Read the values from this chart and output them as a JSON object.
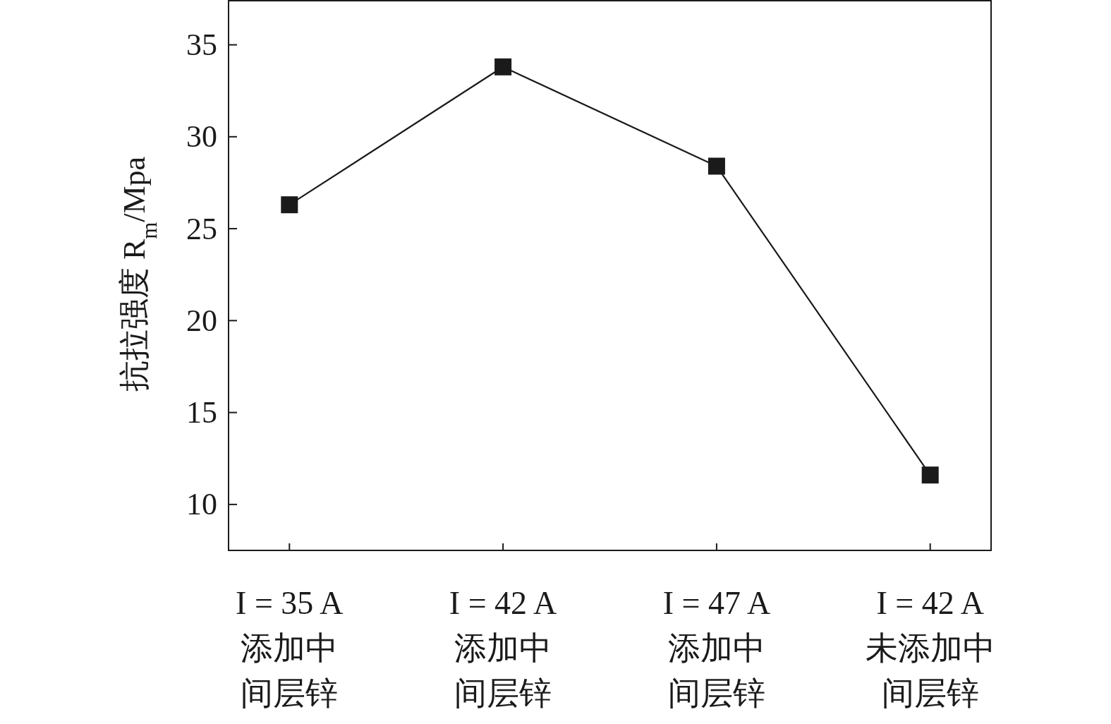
{
  "chart_data": {
    "type": "line",
    "ylabel": "抗拉强度 R$_{m}$/Mpa",
    "categories": [
      "I = 35 A\n添加中间层锌",
      "I = 42 A\n添加中间层锌",
      "I = 47 A\n添加中间层锌",
      "I = 42 A\n未添加中间层锌"
    ],
    "series": [
      {
        "color": "#1a1a1a",
        "values": [
          26.3,
          33.8,
          28.4,
          11.6
        ]
      }
    ],
    "ylim": [
      7.5,
      37.4
    ],
    "yticks": [
      10,
      15,
      20,
      25,
      30,
      35
    ],
    "marker": "square",
    "line_style": "solid",
    "grid": false
  }
}
